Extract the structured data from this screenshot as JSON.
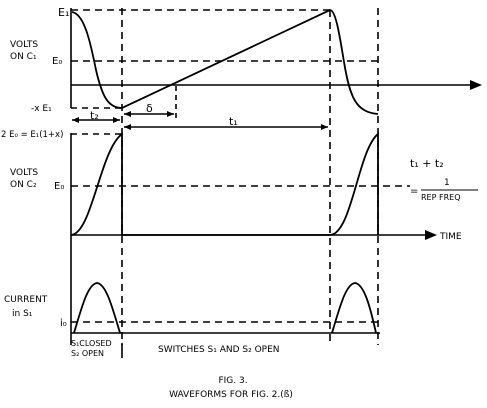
{
  "labels": {
    "e1": "E₁",
    "volts_on_c1_line1": "VOLTS",
    "volts_on_c1_line2": "ON C₁",
    "e0_top": "E₀",
    "minus_xe1": "-x E₁",
    "t2": "t₂",
    "delta": "δ",
    "t1": "t₁",
    "two_e0": "2 E₀ = E₁(1+x)",
    "volts_on_c2_line1": "VOLTS",
    "volts_on_c2_line2": "ON C₂",
    "e0_mid": "E₀",
    "eq_lhs": "t₁ + t₂",
    "eq_eq": "=",
    "eq_num": "1",
    "eq_den": "REP  FREQ",
    "time": "TIME",
    "current_line1": "CURRENT",
    "current_line2": "in  S₁",
    "i0": "i₀",
    "s1_closed": "S₁CLOSED",
    "s2_open": "S₂ OPEN",
    "switches_open": "SWITCHES  S₁ AND S₂  OPEN",
    "fig_number": "FIG. 3.",
    "fig_caption": "WAVEFORMS   FOR   FIG. 2.(ß)"
  },
  "colors": {
    "ink": "#000000",
    "paper": "#ffffff"
  }
}
